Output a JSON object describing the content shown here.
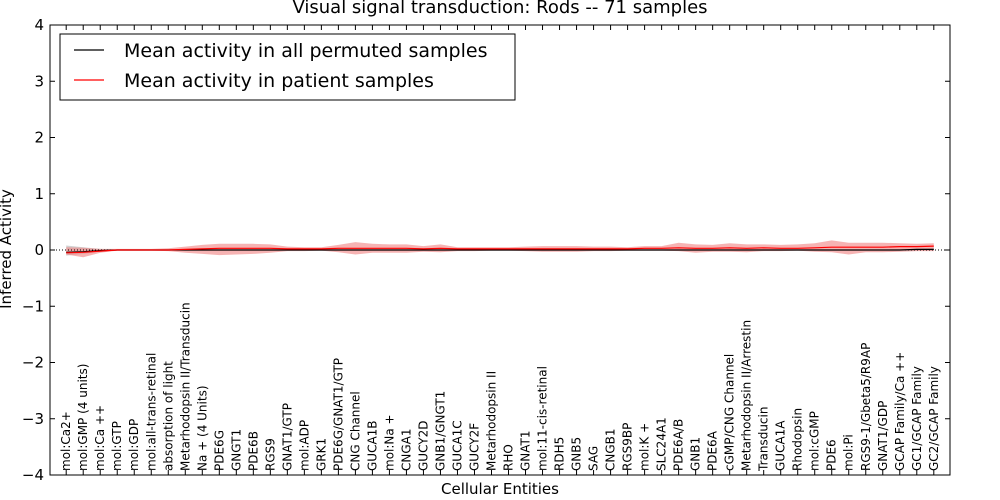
{
  "chart_data": {
    "type": "line",
    "title": "Visual signal transduction: Rods -- 71 samples",
    "xlabel": "Cellular Entities",
    "ylabel": "Inferred Activity",
    "ylim": [
      -4,
      4
    ],
    "yticks": [
      -4,
      -3,
      -2,
      -1,
      0,
      1,
      2,
      3,
      4
    ],
    "ytick_labels": [
      "−4",
      "−3",
      "−2",
      "−1",
      "0",
      "1",
      "2",
      "3",
      "4"
    ],
    "legend_position": "upper-left",
    "categories": [
      "mol:Ca2+",
      "mol:GMP (4 units)",
      "mol:Ca ++",
      "mol:GTP",
      "mol:GDP",
      "mol:all-trans-retinal",
      "absorption of light",
      "Metarhodopsin II/Transducin",
      "Na + (4 Units)",
      "PDE6G",
      "GNGT1",
      "PDE6B",
      "RGS9",
      "GNAT1/GTP",
      "mol:ADP",
      "GRK1",
      "PDE6G/GNAT1/GTP",
      "CNG Channel",
      "GUCA1B",
      "mol:Na +",
      "CNGA1",
      "GUCY2D",
      "GNB1/GNGT1",
      "GUCA1C",
      "GUCY2F",
      "Metarhodopsin II",
      "RHO",
      "GNAT1",
      "mol:11-cis-retinal",
      "RDH5",
      "GNB5",
      "SAG",
      "CNGB1",
      "RGS9BP",
      "mol:K +",
      "SLC24A1",
      "PDE6A/B",
      "GNB1",
      "PDE6A",
      "cGMP/CNG Channel",
      "Metarhodopsin II/Arrestin",
      "Transducin",
      "GUCA1A",
      "Rhodopsin",
      "mol:cGMP",
      "PDE6",
      "mol:Pi",
      "RGS9-1/Gbeta5/R9AP",
      "GNAT1/GDP",
      "GCAP Family/Ca ++",
      "GC1/GCAP Family",
      "GC2/GCAP Family"
    ],
    "series": [
      {
        "name": "Mean activity in all permuted samples",
        "color": "#000000",
        "values": [
          -0.04,
          -0.03,
          -0.01,
          0.0,
          0.0,
          0.0,
          0.0,
          0.0,
          0.0,
          0.0,
          0.0,
          0.0,
          0.0,
          0.0,
          0.0,
          0.0,
          0.0,
          0.0,
          0.0,
          0.0,
          0.0,
          0.0,
          0.0,
          0.0,
          0.0,
          0.0,
          0.0,
          0.0,
          0.0,
          0.0,
          0.0,
          0.0,
          0.0,
          0.0,
          0.0,
          0.0,
          0.0,
          0.0,
          0.0,
          0.0,
          0.0,
          0.0,
          0.0,
          0.0,
          0.0,
          0.0,
          0.0,
          0.0,
          0.0,
          0.0,
          0.01,
          0.01
        ],
        "band": {
          "color": "#9a9a9a",
          "lower": [
            -0.1,
            -0.07,
            -0.03,
            -0.01,
            -0.01,
            -0.01,
            -0.01,
            -0.01,
            -0.01,
            -0.01,
            -0.01,
            -0.01,
            -0.01,
            -0.01,
            -0.01,
            -0.01,
            -0.01,
            -0.01,
            -0.01,
            -0.01,
            -0.01,
            -0.01,
            -0.01,
            -0.01,
            -0.01,
            -0.01,
            -0.01,
            -0.01,
            -0.01,
            -0.01,
            -0.01,
            -0.01,
            -0.01,
            -0.01,
            -0.01,
            -0.01,
            -0.01,
            -0.01,
            -0.01,
            -0.01,
            -0.01,
            -0.01,
            -0.01,
            -0.01,
            -0.01,
            -0.01,
            -0.01,
            -0.01,
            -0.01,
            -0.01,
            -0.01,
            -0.01
          ],
          "upper": [
            0.08,
            0.05,
            0.02,
            0.01,
            0.01,
            0.01,
            0.01,
            0.01,
            0.01,
            0.01,
            0.01,
            0.01,
            0.01,
            0.01,
            0.01,
            0.01,
            0.01,
            0.01,
            0.01,
            0.01,
            0.01,
            0.01,
            0.01,
            0.01,
            0.01,
            0.01,
            0.01,
            0.01,
            0.01,
            0.01,
            0.01,
            0.01,
            0.01,
            0.01,
            0.01,
            0.01,
            0.01,
            0.01,
            0.01,
            0.01,
            0.01,
            0.01,
            0.01,
            0.01,
            0.01,
            0.01,
            0.01,
            0.01,
            0.01,
            0.02,
            0.02,
            0.03
          ]
        }
      },
      {
        "name": "Mean activity in patient samples",
        "color": "#ff0000",
        "values": [
          -0.05,
          -0.04,
          -0.02,
          0.0,
          0.0,
          0.0,
          0.0,
          0.01,
          0.02,
          0.03,
          0.03,
          0.03,
          0.03,
          0.02,
          0.02,
          0.02,
          0.03,
          0.03,
          0.03,
          0.03,
          0.03,
          0.02,
          0.03,
          0.02,
          0.02,
          0.02,
          0.02,
          0.02,
          0.02,
          0.02,
          0.02,
          0.02,
          0.02,
          0.02,
          0.03,
          0.03,
          0.04,
          0.03,
          0.03,
          0.04,
          0.03,
          0.04,
          0.03,
          0.03,
          0.04,
          0.05,
          0.05,
          0.05,
          0.05,
          0.06,
          0.06,
          0.07
        ],
        "band": {
          "color": "#f08080",
          "lower": [
            -0.08,
            -0.13,
            -0.05,
            -0.01,
            -0.01,
            -0.01,
            -0.02,
            -0.05,
            -0.07,
            -0.09,
            -0.08,
            -0.07,
            -0.05,
            -0.02,
            -0.02,
            -0.01,
            -0.04,
            -0.08,
            -0.05,
            -0.05,
            -0.05,
            -0.03,
            -0.04,
            -0.02,
            -0.02,
            -0.01,
            -0.01,
            -0.02,
            -0.03,
            -0.03,
            -0.03,
            -0.02,
            -0.02,
            -0.01,
            -0.01,
            -0.01,
            -0.02,
            -0.05,
            -0.03,
            -0.03,
            -0.04,
            -0.02,
            -0.02,
            -0.01,
            -0.03,
            -0.04,
            -0.08,
            -0.04,
            -0.04,
            -0.03,
            -0.02,
            -0.02
          ],
          "upper": [
            0.05,
            0.04,
            0.02,
            0.02,
            0.02,
            0.02,
            0.03,
            0.06,
            0.09,
            0.11,
            0.11,
            0.11,
            0.1,
            0.06,
            0.05,
            0.05,
            0.09,
            0.14,
            0.11,
            0.1,
            0.1,
            0.07,
            0.1,
            0.05,
            0.05,
            0.05,
            0.05,
            0.06,
            0.07,
            0.07,
            0.07,
            0.06,
            0.06,
            0.05,
            0.07,
            0.07,
            0.13,
            0.1,
            0.09,
            0.12,
            0.1,
            0.1,
            0.09,
            0.1,
            0.12,
            0.17,
            0.13,
            0.13,
            0.13,
            0.12,
            0.11,
            0.12
          ]
        }
      }
    ],
    "reference_line": {
      "y": 0,
      "style": "dotted",
      "color": "#000000"
    }
  }
}
